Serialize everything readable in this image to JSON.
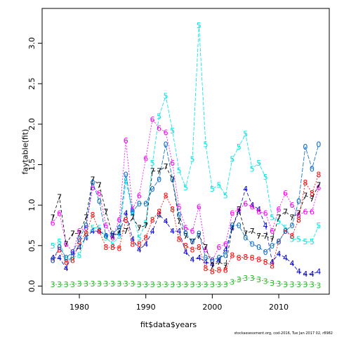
{
  "xlabel": "fit$data$years",
  "ylabel": "faytable(fit)",
  "footer": "stockassessment.org, cod-2016, Tue Jan 2017 02, r8982",
  "chart_data": {
    "type": "line",
    "x": [
      1976,
      1977,
      1978,
      1979,
      1980,
      1981,
      1982,
      1983,
      1984,
      1985,
      1986,
      1987,
      1988,
      1989,
      1990,
      1991,
      1992,
      1993,
      1994,
      1995,
      1996,
      1997,
      1998,
      1999,
      2000,
      2001,
      2002,
      2003,
      2004,
      2005,
      2006,
      2007,
      2008,
      2009,
      2010,
      2011,
      2012,
      2013,
      2014,
      2015,
      2016
    ],
    "xlim": [
      1974.4,
      2017.6
    ],
    "ylim": [
      -0.1,
      3.43
    ],
    "xticks": [
      1980,
      1990,
      2000,
      2010
    ],
    "yticks": [
      0.0,
      0.5,
      1.0,
      1.5,
      2.0,
      2.5,
      3.0
    ],
    "ytick_labels": [
      "0.0",
      "0.5",
      "1.0",
      "1.5",
      "2.0",
      "2.5",
      "3.0"
    ],
    "series": [
      {
        "name": "3",
        "color": "#22bb22",
        "dash": "2,2",
        "values": [
          0.02,
          0.02,
          0.02,
          0.02,
          0.03,
          0.03,
          0.03,
          0.03,
          0.03,
          0.03,
          0.03,
          0.03,
          0.03,
          0.02,
          0.02,
          0.02,
          0.02,
          0.02,
          0.02,
          0.02,
          0.02,
          0.02,
          0.02,
          0.02,
          0.02,
          0.02,
          0.02,
          0.05,
          0.08,
          0.1,
          0.1,
          0.08,
          0.06,
          0.04,
          0.03,
          0.02,
          0.02,
          0.02,
          0.02,
          0.02,
          0.01
        ]
      },
      {
        "name": "4",
        "color": "#0000cc",
        "dash": "5,3",
        "values": [
          0.35,
          0.35,
          0.22,
          0.4,
          0.48,
          0.6,
          0.68,
          0.68,
          0.62,
          0.62,
          0.65,
          0.9,
          0.58,
          0.45,
          0.52,
          0.68,
          0.88,
          0.8,
          0.68,
          0.68,
          0.42,
          0.33,
          0.35,
          0.3,
          0.27,
          0.32,
          0.45,
          0.72,
          0.92,
          1.2,
          1.0,
          0.95,
          0.75,
          0.3,
          0.4,
          0.35,
          0.28,
          0.18,
          0.15,
          0.15,
          0.18
        ]
      },
      {
        "name": "5",
        "color": "#00e5e5",
        "dash": "5,2",
        "values": [
          0.5,
          0.55,
          0.32,
          0.35,
          0.38,
          0.62,
          0.72,
          0.72,
          0.6,
          0.52,
          0.62,
          1.3,
          0.9,
          0.6,
          0.78,
          1.52,
          2.1,
          2.35,
          1.92,
          1.43,
          1.22,
          1.57,
          3.22,
          1.75,
          1.2,
          1.25,
          1.12,
          1.57,
          1.72,
          1.88,
          1.45,
          1.52,
          1.35,
          0.85,
          0.8,
          0.72,
          0.58,
          0.58,
          0.55,
          0.55,
          0.75
        ]
      },
      {
        "name": "6",
        "color": "#ff00ff",
        "dash": "2,2",
        "values": [
          0.78,
          0.9,
          0.52,
          0.42,
          0.68,
          0.72,
          1.22,
          1.15,
          0.75,
          0.6,
          0.82,
          1.8,
          0.95,
          1.12,
          1.58,
          2.06,
          1.95,
          1.9,
          1.52,
          0.98,
          0.72,
          0.68,
          0.98,
          0.45,
          0.32,
          0.48,
          0.52,
          0.9,
          0.95,
          1.02,
          0.98,
          0.92,
          0.9,
          0.68,
          0.95,
          1.15,
          1.0,
          0.88,
          0.92,
          0.92,
          1.22
        ]
      },
      {
        "name": "7",
        "color": "#000000",
        "dash": "4,3",
        "values": [
          0.85,
          1.1,
          0.52,
          0.65,
          0.65,
          0.85,
          1.32,
          1.25,
          0.92,
          0.62,
          0.68,
          0.68,
          0.85,
          0.72,
          0.75,
          1.42,
          1.42,
          1.48,
          1.32,
          0.8,
          0.62,
          0.55,
          0.62,
          0.48,
          0.25,
          0.3,
          0.25,
          0.72,
          0.95,
          0.65,
          0.68,
          0.62,
          0.62,
          0.58,
          0.85,
          0.92,
          0.85,
          0.9,
          1.12,
          1.08,
          1.25
        ]
      },
      {
        "name": "8",
        "color": "#ff0000",
        "dash": "2,2",
        "values": [
          0.32,
          0.45,
          0.3,
          0.32,
          0.55,
          0.65,
          0.88,
          0.68,
          0.48,
          0.48,
          0.47,
          0.82,
          0.52,
          0.52,
          0.6,
          0.82,
          0.92,
          1.12,
          0.95,
          0.58,
          0.5,
          0.45,
          0.48,
          0.22,
          0.18,
          0.2,
          0.2,
          0.38,
          0.35,
          0.36,
          0.35,
          0.33,
          0.3,
          0.25,
          0.55,
          0.68,
          0.62,
          0.82,
          1.28,
          1.15,
          1.38
        ]
      },
      {
        "name": "0",
        "color": "#0066cc",
        "dash": "6,2",
        "values": [
          0.32,
          0.48,
          0.35,
          0.42,
          0.58,
          0.75,
          1.28,
          1.05,
          0.62,
          0.65,
          0.72,
          1.38,
          0.92,
          1.02,
          1.02,
          1.2,
          1.32,
          1.75,
          1.32,
          0.88,
          0.65,
          0.55,
          0.65,
          0.35,
          0.32,
          0.35,
          0.38,
          0.75,
          0.75,
          0.6,
          0.52,
          0.48,
          0.42,
          0.5,
          0.55,
          0.68,
          0.75,
          1.05,
          1.72,
          1.45,
          1.75
        ]
      }
    ]
  }
}
